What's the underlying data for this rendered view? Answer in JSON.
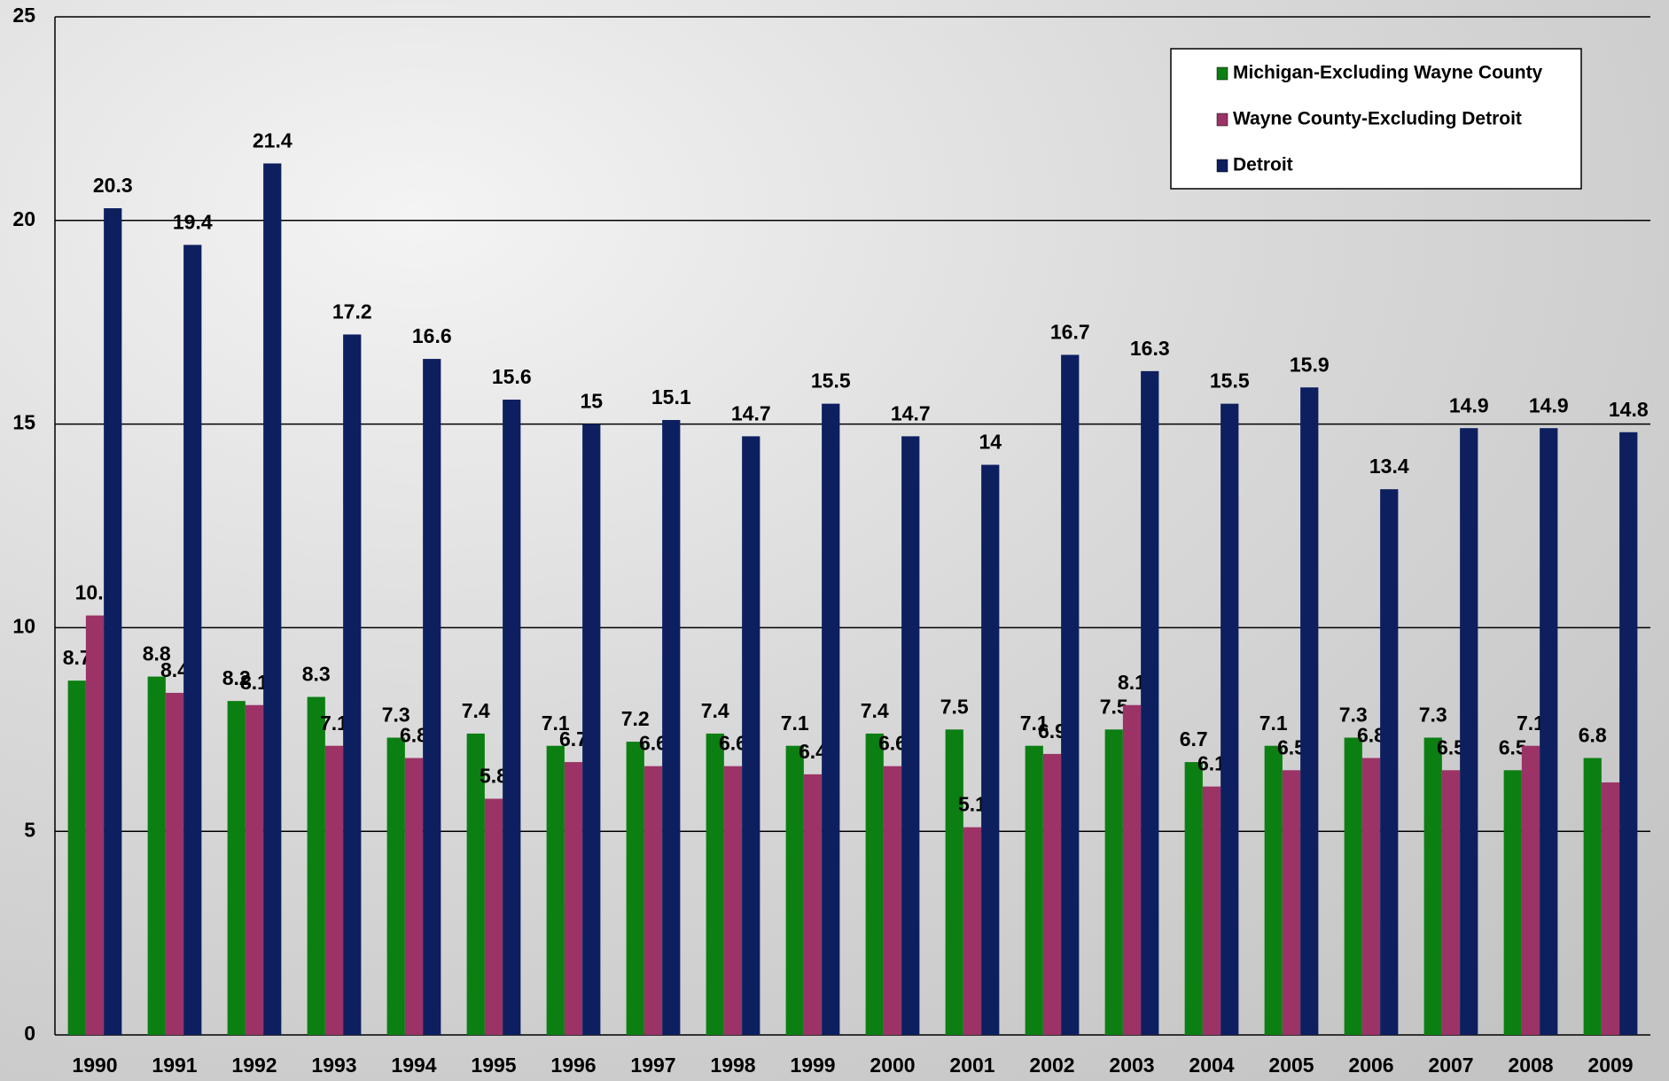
{
  "chart_data": {
    "type": "bar",
    "categories": [
      "1990",
      "1991",
      "1992",
      "1993",
      "1994",
      "1995",
      "1996",
      "1997",
      "1998",
      "1999",
      "2000",
      "2001",
      "2002",
      "2003",
      "2004",
      "2005",
      "2006",
      "2007",
      "2008",
      "2009"
    ],
    "series": [
      {
        "name": "Michigan-Excluding Wayne County",
        "color": "#0b7f12",
        "values": [
          8.7,
          8.8,
          8.2,
          8.3,
          7.3,
          7.4,
          7.1,
          7.2,
          7.4,
          7.1,
          7.4,
          7.5,
          7.1,
          7.5,
          6.7,
          7.1,
          7.3,
          7.3,
          6.5,
          6.8
        ]
      },
      {
        "name": "Wayne County-Excluding Detroit",
        "color": "#9b3366",
        "values": [
          10.3,
          8.4,
          8.1,
          7.1,
          6.8,
          5.8,
          6.7,
          6.6,
          6.6,
          6.4,
          6.6,
          5.1,
          6.9,
          8.1,
          6.1,
          6.5,
          6.8,
          6.5,
          7.1,
          6.2
        ],
        "value_labels": [
          "10.3",
          "8.4",
          "8.1",
          "7.1",
          "6.8",
          "5.8",
          "6.7",
          "6.6",
          "6.6",
          "6.4",
          "6.6",
          "5.1",
          "6.9",
          "8.1",
          "6.1",
          "6.5",
          "6.8",
          "6.5",
          "7.1",
          null
        ]
      },
      {
        "name": "Detroit",
        "color": "#0d1f5f",
        "values": [
          20.3,
          19.4,
          21.4,
          17.2,
          16.6,
          15.6,
          15,
          15.1,
          14.7,
          15.5,
          14.7,
          14,
          16.7,
          16.3,
          15.5,
          15.9,
          13.4,
          14.9,
          14.9,
          14.8
        ]
      }
    ],
    "ylim": [
      0,
      25
    ],
    "yticks": [
      0,
      5,
      10,
      15,
      20,
      25
    ],
    "grid": true,
    "legend": "top-right"
  }
}
